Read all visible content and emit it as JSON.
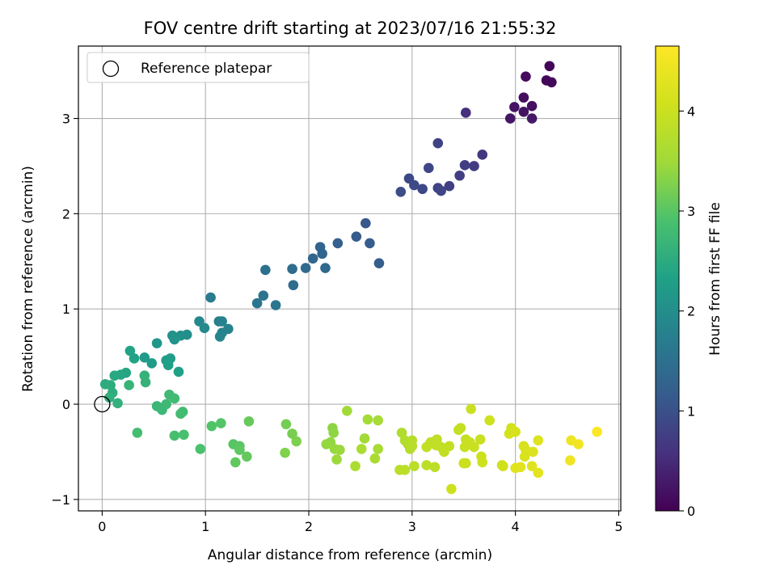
{
  "chart_data": {
    "type": "scatter",
    "title": "FOV centre drift starting at 2023/07/16 21:55:32",
    "xlabel": "Angular distance from reference (arcmin)",
    "ylabel": "Rotation from reference (arcmin)",
    "xlim": [
      -0.23,
      5.02
    ],
    "ylim": [
      -1.12,
      3.76
    ],
    "xticks": [
      0,
      1,
      2,
      3,
      4,
      5
    ],
    "yticks": [
      -1,
      0,
      1,
      2,
      3
    ],
    "grid": true,
    "legend": {
      "placement": "top-left",
      "entries": [
        {
          "label": "Reference platepar",
          "marker": "open-circle",
          "x": 0,
          "y": 0
        }
      ]
    },
    "colorbar": {
      "label": "Hours from first FF file",
      "colormap": "viridis",
      "range": [
        0,
        4.65
      ],
      "ticks": [
        0,
        1,
        2,
        3,
        4
      ]
    },
    "points": [
      [
        4.33,
        3.55,
        0.05
      ],
      [
        4.35,
        3.38,
        0.1
      ],
      [
        4.3,
        3.4,
        0.08
      ],
      [
        4.1,
        3.44,
        0.12
      ],
      [
        4.08,
        3.22,
        0.15
      ],
      [
        4.16,
        3.13,
        0.18
      ],
      [
        4.08,
        3.07,
        0.2
      ],
      [
        3.99,
        3.12,
        0.22
      ],
      [
        3.95,
        3.0,
        0.25
      ],
      [
        4.16,
        3.0,
        0.27
      ],
      [
        3.52,
        3.06,
        0.55
      ],
      [
        3.68,
        2.62,
        0.65
      ],
      [
        3.6,
        2.5,
        0.7
      ],
      [
        3.51,
        2.51,
        0.72
      ],
      [
        3.46,
        2.4,
        0.75
      ],
      [
        3.36,
        2.29,
        0.78
      ],
      [
        3.25,
        2.74,
        0.8
      ],
      [
        3.25,
        2.27,
        0.82
      ],
      [
        3.28,
        2.24,
        0.84
      ],
      [
        3.16,
        2.48,
        0.86
      ],
      [
        3.1,
        2.26,
        0.88
      ],
      [
        2.97,
        2.37,
        0.9
      ],
      [
        3.02,
        2.3,
        0.92
      ],
      [
        2.89,
        2.23,
        0.95
      ],
      [
        2.55,
        1.9,
        1.1
      ],
      [
        2.46,
        1.76,
        1.15
      ],
      [
        2.59,
        1.69,
        1.18
      ],
      [
        2.68,
        1.48,
        1.2
      ],
      [
        2.28,
        1.69,
        1.25
      ],
      [
        2.11,
        1.65,
        1.3
      ],
      [
        2.13,
        1.58,
        1.32
      ],
      [
        2.04,
        1.53,
        1.35
      ],
      [
        2.16,
        1.43,
        1.38
      ],
      [
        1.97,
        1.43,
        1.4
      ],
      [
        1.84,
        1.42,
        1.42
      ],
      [
        1.85,
        1.25,
        1.45
      ],
      [
        1.58,
        1.41,
        1.5
      ],
      [
        1.56,
        1.14,
        1.55
      ],
      [
        1.5,
        1.06,
        1.58
      ],
      [
        1.68,
        1.04,
        1.6
      ],
      [
        1.05,
        1.12,
        1.7
      ],
      [
        1.13,
        0.87,
        1.75
      ],
      [
        1.16,
        0.87,
        1.78
      ],
      [
        1.22,
        0.79,
        1.8
      ],
      [
        1.16,
        0.75,
        1.82
      ],
      [
        1.14,
        0.71,
        1.85
      ],
      [
        0.94,
        0.87,
        1.9
      ],
      [
        0.99,
        0.8,
        1.92
      ],
      [
        0.82,
        0.73,
        2.0
      ],
      [
        0.76,
        0.72,
        2.05
      ],
      [
        0.68,
        0.72,
        2.08
      ],
      [
        0.7,
        0.68,
        2.1
      ],
      [
        0.53,
        0.64,
        2.15
      ],
      [
        0.41,
        0.49,
        2.2
      ],
      [
        0.48,
        0.43,
        2.22
      ],
      [
        0.62,
        0.46,
        2.25
      ],
      [
        0.66,
        0.48,
        2.27
      ],
      [
        0.64,
        0.41,
        2.3
      ],
      [
        0.74,
        0.34,
        2.32
      ],
      [
        0.31,
        0.48,
        2.35
      ],
      [
        0.27,
        0.56,
        2.37
      ],
      [
        0.23,
        0.33,
        2.4
      ],
      [
        0.18,
        0.31,
        2.42
      ],
      [
        0.12,
        0.3,
        2.45
      ],
      [
        0.03,
        0.21,
        2.5
      ],
      [
        0.08,
        0.2,
        2.52
      ],
      [
        0.1,
        0.12,
        2.55
      ],
      [
        0.07,
        0.07,
        2.58
      ],
      [
        0.15,
        0.01,
        2.6
      ],
      [
        0.41,
        0.3,
        2.62
      ],
      [
        0.42,
        0.23,
        2.64
      ],
      [
        0.26,
        0.2,
        2.66
      ],
      [
        0.53,
        -0.02,
        2.7
      ],
      [
        0.58,
        -0.06,
        2.72
      ],
      [
        0.62,
        0.0,
        2.74
      ],
      [
        0.65,
        0.1,
        2.76
      ],
      [
        0.7,
        0.06,
        2.78
      ],
      [
        0.78,
        -0.08,
        2.8
      ],
      [
        0.76,
        -0.1,
        2.82
      ],
      [
        0.34,
        -0.3,
        2.84
      ],
      [
        0.7,
        -0.33,
        2.86
      ],
      [
        0.79,
        -0.32,
        2.88
      ],
      [
        0.95,
        -0.47,
        2.9
      ],
      [
        1.06,
        -0.23,
        2.95
      ],
      [
        1.15,
        -0.2,
        2.97
      ],
      [
        1.27,
        -0.42,
        3.0
      ],
      [
        1.33,
        -0.44,
        3.02
      ],
      [
        1.33,
        -0.48,
        3.04
      ],
      [
        1.29,
        -0.61,
        3.06
      ],
      [
        1.4,
        -0.55,
        3.08
      ],
      [
        1.42,
        -0.18,
        3.1
      ],
      [
        1.78,
        -0.21,
        3.2
      ],
      [
        1.84,
        -0.31,
        3.22
      ],
      [
        1.88,
        -0.39,
        3.25
      ],
      [
        1.77,
        -0.51,
        3.27
      ],
      [
        2.23,
        -0.25,
        3.35
      ],
      [
        2.24,
        -0.3,
        3.37
      ],
      [
        2.21,
        -0.4,
        3.39
      ],
      [
        2.17,
        -0.42,
        3.41
      ],
      [
        2.25,
        -0.47,
        3.43
      ],
      [
        2.3,
        -0.48,
        3.45
      ],
      [
        2.27,
        -0.58,
        3.47
      ],
      [
        2.37,
        -0.07,
        3.5
      ],
      [
        2.54,
        -0.36,
        3.52
      ],
      [
        2.57,
        -0.16,
        3.55
      ],
      [
        2.67,
        -0.17,
        3.57
      ],
      [
        2.67,
        -0.47,
        3.59
      ],
      [
        2.64,
        -0.57,
        3.61
      ],
      [
        2.51,
        -0.47,
        3.63
      ],
      [
        2.45,
        -0.65,
        3.65
      ],
      [
        2.9,
        -0.3,
        3.68
      ],
      [
        2.93,
        -0.38,
        3.7
      ],
      [
        2.96,
        -0.42,
        3.72
      ],
      [
        2.98,
        -0.47,
        3.74
      ],
      [
        3.0,
        -0.38,
        3.76
      ],
      [
        3.0,
        -0.44,
        3.78
      ],
      [
        2.88,
        -0.69,
        3.8
      ],
      [
        2.93,
        -0.69,
        3.81
      ],
      [
        3.02,
        -0.65,
        3.82
      ],
      [
        3.14,
        -0.64,
        3.83
      ],
      [
        3.22,
        -0.66,
        3.84
      ],
      [
        3.18,
        -0.4,
        3.85
      ],
      [
        3.24,
        -0.37,
        3.86
      ],
      [
        3.23,
        -0.43,
        3.87
      ],
      [
        3.14,
        -0.45,
        3.88
      ],
      [
        3.28,
        -0.45,
        3.89
      ],
      [
        3.31,
        -0.5,
        3.9
      ],
      [
        3.36,
        -0.44,
        3.91
      ],
      [
        3.45,
        -0.27,
        3.92
      ],
      [
        3.47,
        -0.25,
        3.93
      ],
      [
        3.52,
        -0.37,
        3.94
      ],
      [
        3.56,
        -0.4,
        3.95
      ],
      [
        3.51,
        -0.45,
        3.96
      ],
      [
        3.57,
        -0.05,
        3.97
      ],
      [
        3.6,
        -0.45,
        3.98
      ],
      [
        3.66,
        -0.37,
        3.99
      ],
      [
        3.5,
        -0.62,
        4.0
      ],
      [
        3.52,
        -0.62,
        4.01
      ],
      [
        3.67,
        -0.55,
        4.02
      ],
      [
        3.68,
        -0.61,
        4.03
      ],
      [
        3.75,
        -0.17,
        4.04
      ],
      [
        3.38,
        -0.89,
        4.05
      ],
      [
        3.87,
        -0.64,
        4.06
      ],
      [
        3.88,
        -0.65,
        4.07
      ],
      [
        3.96,
        -0.25,
        4.1
      ],
      [
        3.94,
        -0.31,
        4.12
      ],
      [
        4.0,
        -0.29,
        4.14
      ],
      [
        4.08,
        -0.44,
        4.16
      ],
      [
        4.1,
        -0.48,
        4.18
      ],
      [
        4.09,
        -0.55,
        4.2
      ],
      [
        4.17,
        -0.5,
        4.22
      ],
      [
        4.22,
        -0.38,
        4.24
      ],
      [
        4.16,
        -0.65,
        4.26
      ],
      [
        4.0,
        -0.67,
        4.28
      ],
      [
        4.05,
        -0.66,
        4.3
      ],
      [
        4.22,
        -0.72,
        4.32
      ],
      [
        4.54,
        -0.38,
        4.45
      ],
      [
        4.61,
        -0.42,
        4.5
      ],
      [
        4.53,
        -0.59,
        4.48
      ],
      [
        4.79,
        -0.29,
        4.62
      ]
    ]
  }
}
